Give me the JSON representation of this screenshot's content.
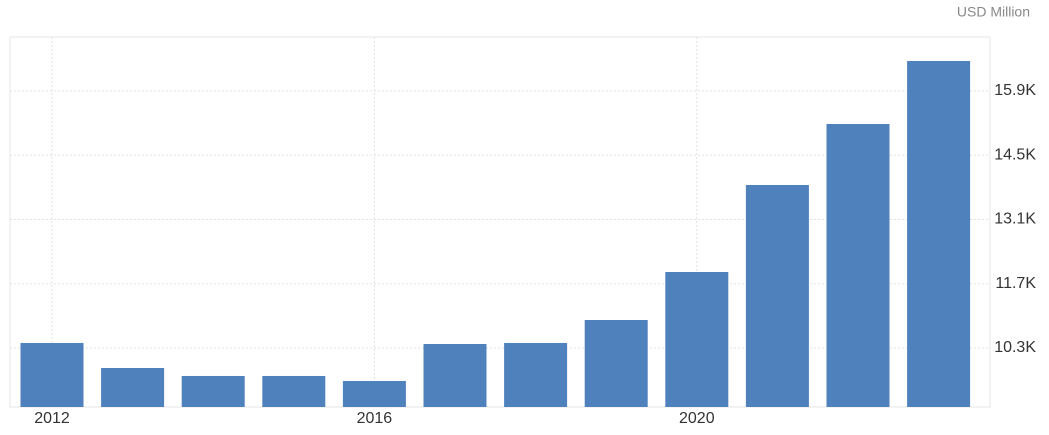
{
  "chart_data": {
    "type": "bar",
    "unit": "USD Million",
    "categories": [
      "2012",
      null,
      null,
      null,
      "2016",
      null,
      null,
      null,
      "2020",
      null,
      null,
      null
    ],
    "values": [
      10409,
      9864,
      9690,
      9690,
      9581,
      10387,
      10409,
      10910,
      11956,
      13852,
      15181,
      16554
    ],
    "color": "#4f81bd",
    "ylim": [
      9014,
      17077
    ],
    "yticks": [
      {
        "value": 10300,
        "label": "10.3K"
      },
      {
        "value": 11700,
        "label": "11.7K"
      },
      {
        "value": 13100,
        "label": "13.1K"
      },
      {
        "value": 14500,
        "label": "14.5K"
      },
      {
        "value": 15900,
        "label": "15.9K"
      }
    ],
    "grid": true
  }
}
